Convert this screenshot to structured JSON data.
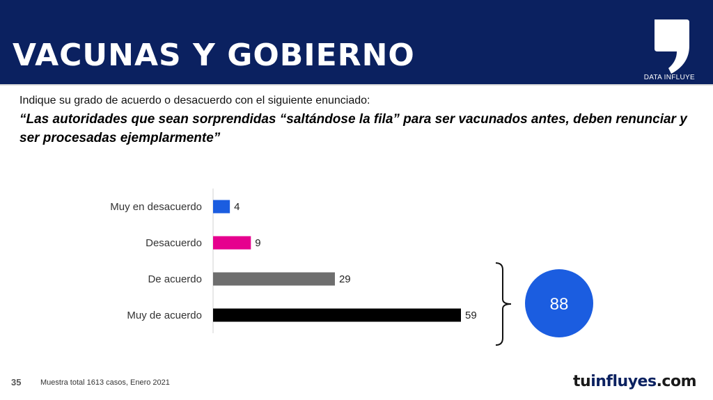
{
  "header": {
    "title": "VACUNAS Y GOBIERNO",
    "brand_tag": "DATA INFLUYE"
  },
  "question": "Indique su grado de acuerdo o desacuerdo con el siguiente enunciado:",
  "statement": "“Las autoridades que sean sorprendidas “saltándose la fila” para ser vacunados antes, deben renunciar y ser procesadas ejemplarmente”",
  "chart_data": {
    "type": "bar",
    "orientation": "horizontal",
    "categories": [
      "Muy en desacuerdo",
      "Desacuerdo",
      "De acuerdo",
      "Muy de acuerdo"
    ],
    "values": [
      4,
      9,
      29,
      59
    ],
    "colors": [
      "#1b5de0",
      "#e6008e",
      "#6e6e6e",
      "#000000"
    ],
    "xlim": [
      0,
      59
    ],
    "grid": false,
    "group_total": {
      "categories": [
        "De acuerdo",
        "Muy de acuerdo"
      ],
      "value": "88",
      "color": "#1b5de0"
    }
  },
  "footer": {
    "page": "35",
    "note": "Muestra total 1613 casos,  Enero 2021",
    "brand_part1": "tu",
    "brand_part2": "influyes",
    "brand_part3": ".com"
  }
}
